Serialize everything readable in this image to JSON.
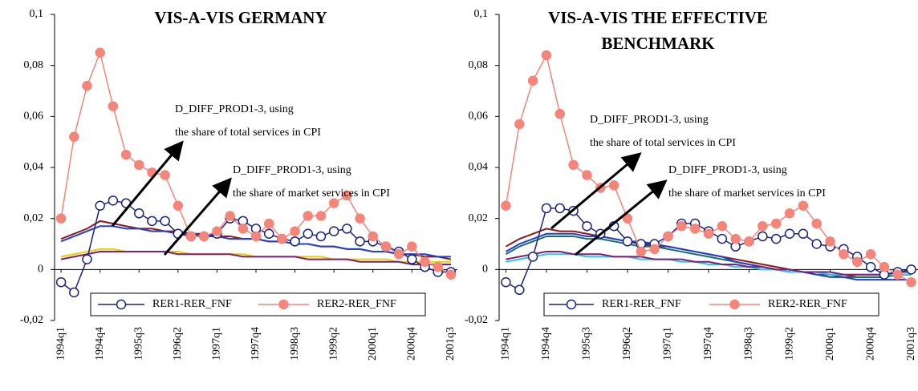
{
  "chart_data": [
    {
      "type": "line",
      "title": "VIS-A-VIS GERMANY",
      "categories": [
        "1994q1",
        null,
        null,
        "1994q4",
        null,
        null,
        "1995q3",
        null,
        null,
        "1996q2",
        null,
        null,
        "1997q1",
        null,
        null,
        "1997q4",
        null,
        null,
        "1998q3",
        null,
        null,
        "1999q2",
        null,
        null,
        "2000q1",
        null,
        null,
        "2000q4",
        null,
        null,
        "2001q3"
      ],
      "ylim": [
        -0.02,
        0.1
      ],
      "yticks": [
        {
          "value": -0.02,
          "label": "-0,02"
        },
        0,
        {
          "value": 0.02,
          "label": "0,02"
        },
        {
          "value": 0.04,
          "label": "0,04"
        },
        {
          "value": 0.06,
          "label": "0,06"
        },
        {
          "value": 0.08,
          "label": "0,08"
        },
        {
          "value": 0.1,
          "label": "0,1"
        }
      ],
      "legend": "bottom",
      "annotations": [
        [
          "D_DIFF_PROD1-3, using",
          "the share of total services in CPI"
        ],
        [
          "D_DIFF_PROD1-3, using",
          "the share of market services in CPI"
        ]
      ],
      "series": [
        {
          "color": "#8b1a1a",
          "values": [
            0.012,
            0.014,
            0.016,
            0.019,
            0.018,
            0.017,
            0.016,
            0.016,
            0.015,
            0.015,
            0.014,
            0.014,
            0.013,
            0.013,
            0.012,
            0.012,
            0.011,
            0.011,
            0.01,
            0.01,
            0.009,
            0.009,
            0.008,
            0.008,
            0.007,
            0.007,
            0.006,
            0.006,
            0.005,
            0.005,
            0.004
          ]
        },
        {
          "color": "#1f3fd0",
          "values": [
            0.011,
            0.013,
            0.015,
            0.017,
            0.017,
            0.016,
            0.016,
            0.015,
            0.015,
            0.014,
            0.014,
            0.013,
            0.013,
            0.012,
            0.012,
            0.012,
            0.011,
            0.011,
            0.01,
            0.01,
            0.009,
            0.009,
            0.008,
            0.008,
            0.007,
            0.007,
            0.006,
            0.006,
            0.006,
            0.005,
            0.005
          ]
        },
        {
          "color": "#e8d000",
          "values": [
            0.005,
            0.006,
            0.007,
            0.008,
            0.008,
            0.007,
            0.007,
            0.007,
            0.007,
            0.007,
            0.006,
            0.006,
            0.006,
            0.006,
            0.006,
            0.005,
            0.005,
            0.005,
            0.005,
            0.005,
            0.005,
            0.004,
            0.004,
            0.004,
            0.004,
            0.004,
            0.003,
            0.003,
            0.003,
            0.003,
            0.003
          ]
        },
        {
          "color": "#7a1f7a",
          "values": [
            0.004,
            0.005,
            0.006,
            0.007,
            0.007,
            0.007,
            0.007,
            0.007,
            0.007,
            0.006,
            0.006,
            0.006,
            0.006,
            0.006,
            0.005,
            0.005,
            0.005,
            0.005,
            0.005,
            0.004,
            0.004,
            0.004,
            0.004,
            0.003,
            0.003,
            0.003,
            0.003,
            0.002,
            0.002,
            0.002,
            0.002
          ]
        },
        {
          "name": "RER1-RER_FNF",
          "color": "#1a237e",
          "marker": "open",
          "values": [
            -0.005,
            -0.009,
            0.004,
            0.025,
            0.027,
            0.026,
            0.022,
            0.019,
            0.019,
            0.014,
            0.013,
            0.013,
            0.014,
            0.02,
            0.019,
            0.016,
            0.014,
            0.012,
            0.011,
            0.014,
            0.013,
            0.015,
            0.016,
            0.011,
            0.011,
            0.009,
            0.007,
            0.004,
            0.001,
            -0.001,
            -0.001
          ]
        },
        {
          "name": "RER2-RER_FNF",
          "color": "#f4857a",
          "marker": "filled",
          "values": [
            0.02,
            0.052,
            0.072,
            0.085,
            0.064,
            0.045,
            0.041,
            0.038,
            0.037,
            0.025,
            0.013,
            0.013,
            0.015,
            0.021,
            0.016,
            0.013,
            0.018,
            0.012,
            0.015,
            0.021,
            0.021,
            0.026,
            0.029,
            0.02,
            0.013,
            0.009,
            0.006,
            0.009,
            0.003,
            0.001,
            -0.002
          ]
        }
      ]
    },
    {
      "type": "line",
      "title": "VIS-A-VIS THE EFFECTIVE BENCHMARK",
      "categories": [
        "1994q1",
        null,
        null,
        "1994q4",
        null,
        null,
        "1995q3",
        null,
        null,
        "1996q2",
        null,
        null,
        "1997q1",
        null,
        null,
        "1997q4",
        null,
        null,
        "1998q3",
        null,
        null,
        "1999q2",
        null,
        null,
        "2000q1",
        null,
        null,
        "2000q4",
        null,
        null,
        "2001q3"
      ],
      "ylim": [
        -0.02,
        0.1
      ],
      "yticks": [
        {
          "value": -0.02,
          "label": "-0,02"
        },
        0,
        {
          "value": 0.02,
          "label": "0,02"
        },
        {
          "value": 0.04,
          "label": "0,04"
        },
        {
          "value": 0.06,
          "label": "0,06"
        },
        {
          "value": 0.08,
          "label": "0,08"
        },
        {
          "value": 0.1,
          "label": "0,1"
        }
      ],
      "legend": "bottom",
      "annotations": [
        [
          "D_DIFF_PROD1-3, using",
          "the share of total services in CPI"
        ],
        [
          "D_DIFF_PROD1-3, using",
          "the share of market services in CPI"
        ]
      ],
      "series": [
        {
          "color": "#8b1a1a",
          "values": [
            0.009,
            0.012,
            0.014,
            0.016,
            0.015,
            0.015,
            0.014,
            0.013,
            0.012,
            0.011,
            0.01,
            0.009,
            0.009,
            0.008,
            0.007,
            0.006,
            0.005,
            0.004,
            0.003,
            0.002,
            0.001,
            0.0,
            -0.001,
            -0.001,
            -0.002,
            -0.002,
            -0.003,
            -0.003,
            -0.003,
            -0.002,
            -0.002
          ]
        },
        {
          "color": "#1a6e6e",
          "values": [
            0.006,
            0.009,
            0.011,
            0.013,
            0.013,
            0.013,
            0.012,
            0.012,
            0.011,
            0.01,
            0.009,
            0.009,
            0.008,
            0.007,
            0.006,
            0.005,
            0.004,
            0.003,
            0.002,
            0.001,
            0.0,
            -0.001,
            -0.001,
            -0.002,
            -0.002,
            -0.003,
            -0.003,
            -0.003,
            -0.003,
            -0.002,
            -0.002
          ]
        },
        {
          "color": "#1f3fd0",
          "values": [
            0.007,
            0.01,
            0.012,
            0.014,
            0.014,
            0.014,
            0.013,
            0.013,
            0.012,
            0.011,
            0.011,
            0.01,
            0.009,
            0.008,
            0.007,
            0.006,
            0.005,
            0.003,
            0.002,
            0.001,
            0.0,
            -0.001,
            -0.001,
            -0.002,
            -0.003,
            -0.003,
            -0.004,
            -0.004,
            -0.004,
            -0.004,
            -0.004
          ]
        },
        {
          "color": "#30c8e0",
          "values": [
            0.003,
            0.004,
            0.005,
            0.006,
            0.006,
            0.006,
            0.005,
            0.005,
            0.005,
            0.005,
            0.004,
            0.004,
            0.004,
            0.003,
            0.003,
            0.002,
            0.002,
            0.001,
            0.001,
            0.0,
            0.0,
            -0.001,
            -0.001,
            -0.001,
            -0.002,
            -0.002,
            -0.002,
            -0.002,
            -0.002,
            -0.002,
            -0.002
          ]
        },
        {
          "color": "#7a1f7a",
          "values": [
            0.004,
            0.005,
            0.006,
            0.007,
            0.007,
            0.006,
            0.006,
            0.006,
            0.005,
            0.005,
            0.005,
            0.004,
            0.004,
            0.004,
            0.003,
            0.003,
            0.002,
            0.002,
            0.001,
            0.001,
            0.0,
            0.0,
            -0.001,
            -0.001,
            -0.001,
            -0.002,
            -0.002,
            -0.002,
            -0.002,
            -0.001,
            -0.001
          ]
        },
        {
          "name": "RER1-RER_FNF",
          "color": "#1a237e",
          "marker": "open",
          "values": [
            -0.005,
            -0.008,
            0.005,
            0.024,
            0.024,
            0.023,
            0.017,
            0.014,
            0.017,
            0.011,
            0.01,
            0.01,
            0.013,
            0.018,
            0.018,
            0.015,
            0.012,
            0.009,
            0.011,
            0.013,
            0.012,
            0.014,
            0.014,
            0.01,
            0.009,
            0.008,
            0.005,
            0.001,
            -0.002,
            -0.001,
            0.0
          ]
        },
        {
          "name": "RER2-RER_FNF",
          "color": "#f4857a",
          "marker": "filled",
          "values": [
            0.025,
            0.057,
            0.074,
            0.084,
            0.061,
            0.041,
            0.037,
            0.032,
            0.033,
            0.02,
            0.007,
            0.008,
            0.013,
            0.017,
            0.016,
            0.014,
            0.017,
            0.012,
            0.011,
            0.017,
            0.018,
            0.022,
            0.025,
            0.018,
            0.011,
            0.006,
            0.003,
            0.006,
            0.001,
            -0.002,
            -0.005
          ]
        }
      ]
    }
  ]
}
